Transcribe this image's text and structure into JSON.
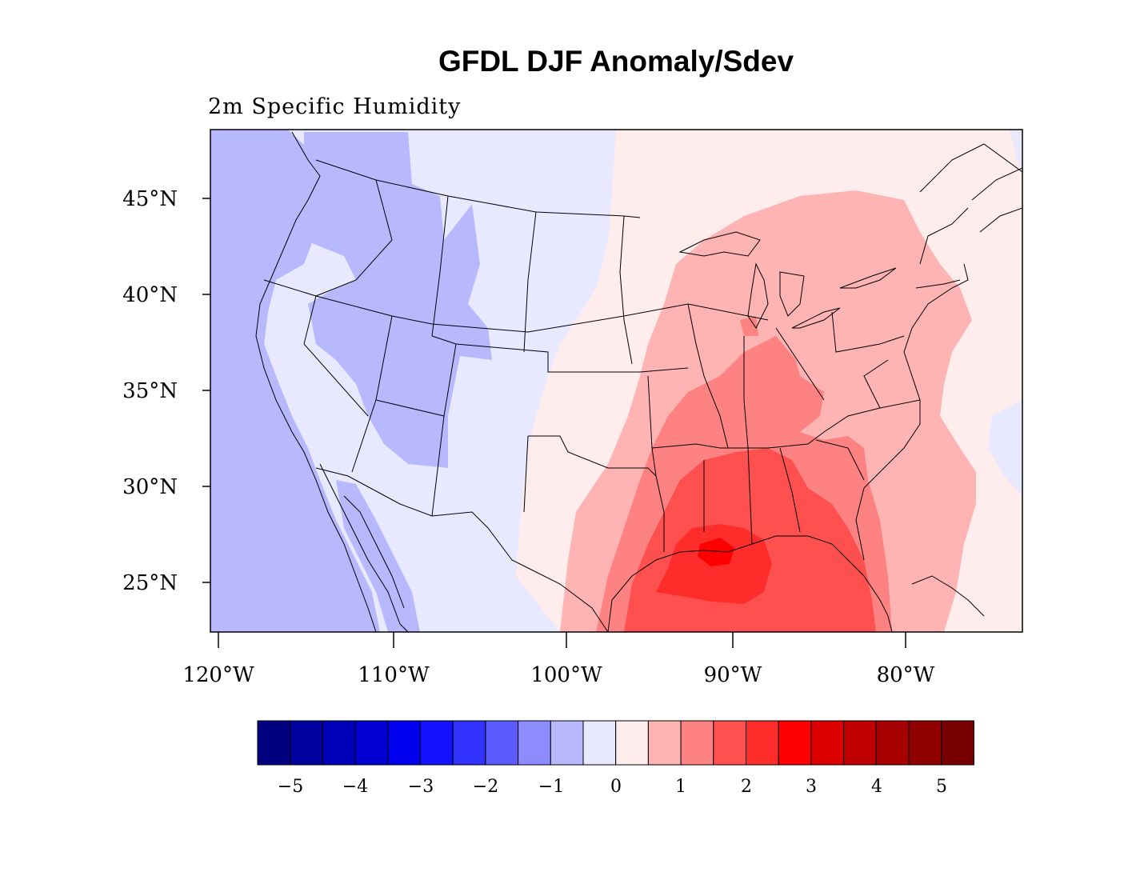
{
  "title": "GFDL DJF Anomaly/Sdev",
  "subtitle": "2m Specific Humidity",
  "map": {
    "lat_labels": [
      "45°N",
      "40°N",
      "35°N",
      "30°N",
      "25°N"
    ],
    "lon_labels": [
      "120°W",
      "110°W",
      "100°W",
      "90°W",
      "80°W"
    ]
  },
  "colorbar": {
    "colors": [
      "#000080",
      "#00009c",
      "#0000b8",
      "#0000d4",
      "#0000f0",
      "#1212ff",
      "#3232ff",
      "#5a5aff",
      "#8c8cff",
      "#b8b8ff",
      "#e8e8ff",
      "#ffecec",
      "#ffb4b4",
      "#ff8282",
      "#ff5050",
      "#ff2c2c",
      "#ff0000",
      "#dc0000",
      "#c00000",
      "#a60000",
      "#900000",
      "#780000"
    ],
    "tick_labels": [
      "−5",
      "−4",
      "−3",
      "−2",
      "−1",
      "0",
      "1",
      "2",
      "3",
      "4",
      "5"
    ]
  },
  "palette": {
    "neg1": "#b8b8ff",
    "neg0": "#e8e8ff",
    "pos0": "#ffecec",
    "pos1": "#ffb4b4",
    "pos2": "#ff8282",
    "pos3": "#ff5050",
    "pos4": "#ff2c2c"
  }
}
